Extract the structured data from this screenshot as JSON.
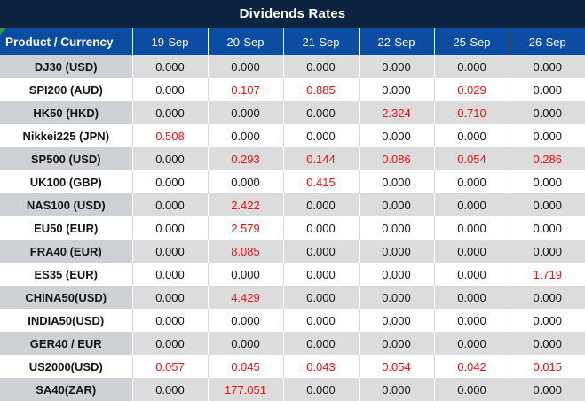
{
  "title": "Dividends Rates",
  "colors": {
    "title_bar_bg": "#0C2340",
    "header_bg": "#0B4DA3",
    "header_text": "#FFFFFF",
    "row_gray": "#DCDCDC",
    "label_gray": "#CDD1D5",
    "row_white": "#FFFFFF",
    "value_text": "#141414",
    "highlight_red": "#F20D0D",
    "corner_marker_green": "#2E9E3A"
  },
  "table": {
    "header": {
      "product_label": "Product / Currency",
      "dates": [
        "19-Sep",
        "20-Sep",
        "21-Sep",
        "22-Sep",
        "25-Sep",
        "26-Sep"
      ]
    },
    "rows": [
      {
        "label": "DJ30 (USD)",
        "values": [
          "0.000",
          "0.000",
          "0.000",
          "0.000",
          "0.000",
          "0.000"
        ]
      },
      {
        "label": "SPI200 (AUD)",
        "values": [
          "0.000",
          "0.107",
          "0.885",
          "0.000",
          "0.029",
          "0.000"
        ]
      },
      {
        "label": "HK50 (HKD)",
        "values": [
          "0.000",
          "0.000",
          "0.000",
          "2.324",
          "0.710",
          "0.000"
        ]
      },
      {
        "label": "Nikkei225 (JPN)",
        "values": [
          "0.508",
          "0.000",
          "0.000",
          "0.000",
          "0.000",
          "0.000"
        ]
      },
      {
        "label": "SP500 (USD)",
        "values": [
          "0.000",
          "0.293",
          "0.144",
          "0.086",
          "0.054",
          "0.286"
        ]
      },
      {
        "label": "UK100 (GBP)",
        "values": [
          "0.000",
          "0.000",
          "0.415",
          "0.000",
          "0.000",
          "0.000"
        ]
      },
      {
        "label": "NAS100 (USD)",
        "values": [
          "0.000",
          "2.422",
          "0.000",
          "0.000",
          "0.000",
          "0.000"
        ]
      },
      {
        "label": "EU50 (EUR)",
        "values": [
          "0.000",
          "2.579",
          "0.000",
          "0.000",
          "0.000",
          "0.000"
        ]
      },
      {
        "label": "FRA40 (EUR)",
        "values": [
          "0.000",
          "8.085",
          "0.000",
          "0.000",
          "0.000",
          "0.000"
        ]
      },
      {
        "label": "ES35 (EUR)",
        "values": [
          "0.000",
          "0.000",
          "0.000",
          "0.000",
          "0.000",
          "1.719"
        ]
      },
      {
        "label": "CHINA50(USD)",
        "values": [
          "0.000",
          "4.429",
          "0.000",
          "0.000",
          "0.000",
          "0.000"
        ]
      },
      {
        "label": "INDIA50(USD)",
        "values": [
          "0.000",
          "0.000",
          "0.000",
          "0.000",
          "0.000",
          "0.000"
        ]
      },
      {
        "label": "GER40 / EUR",
        "values": [
          "0.000",
          "0.000",
          "0.000",
          "0.000",
          "0.000",
          "0.000"
        ]
      },
      {
        "label": "US2000(USD)",
        "values": [
          "0.057",
          "0.045",
          "0.043",
          "0.054",
          "0.042",
          "0.015"
        ]
      },
      {
        "label": "SA40(ZAR)",
        "values": [
          "0.000",
          "177.051",
          "0.000",
          "0.000",
          "0.000",
          "0.000"
        ]
      }
    ],
    "zero_value": "0.000"
  },
  "chart_data": {
    "type": "table",
    "title": "Dividends Rates",
    "columns": [
      "Product / Currency",
      "19-Sep",
      "20-Sep",
      "21-Sep",
      "22-Sep",
      "25-Sep",
      "26-Sep"
    ],
    "rows": [
      [
        "DJ30 (USD)",
        0.0,
        0.0,
        0.0,
        0.0,
        0.0,
        0.0
      ],
      [
        "SPI200 (AUD)",
        0.0,
        0.107,
        0.885,
        0.0,
        0.029,
        0.0
      ],
      [
        "HK50 (HKD)",
        0.0,
        0.0,
        0.0,
        2.324,
        0.71,
        0.0
      ],
      [
        "Nikkei225 (JPN)",
        0.508,
        0.0,
        0.0,
        0.0,
        0.0,
        0.0
      ],
      [
        "SP500 (USD)",
        0.0,
        0.293,
        0.144,
        0.086,
        0.054,
        0.286
      ],
      [
        "UK100 (GBP)",
        0.0,
        0.0,
        0.415,
        0.0,
        0.0,
        0.0
      ],
      [
        "NAS100 (USD)",
        0.0,
        2.422,
        0.0,
        0.0,
        0.0,
        0.0
      ],
      [
        "EU50 (EUR)",
        0.0,
        2.579,
        0.0,
        0.0,
        0.0,
        0.0
      ],
      [
        "FRA40 (EUR)",
        0.0,
        8.085,
        0.0,
        0.0,
        0.0,
        0.0
      ],
      [
        "ES35 (EUR)",
        0.0,
        0.0,
        0.0,
        0.0,
        0.0,
        1.719
      ],
      [
        "CHINA50(USD)",
        0.0,
        4.429,
        0.0,
        0.0,
        0.0,
        0.0
      ],
      [
        "INDIA50(USD)",
        0.0,
        0.0,
        0.0,
        0.0,
        0.0,
        0.0
      ],
      [
        "GER40 / EUR",
        0.0,
        0.0,
        0.0,
        0.0,
        0.0,
        0.0
      ],
      [
        "US2000(USD)",
        0.057,
        0.045,
        0.043,
        0.054,
        0.042,
        0.015
      ],
      [
        "SA40(ZAR)",
        0.0,
        177.051,
        0.0,
        0.0,
        0.0,
        0.0
      ]
    ],
    "notes": "Non-zero rates rendered in red; zero rates in black. Rows alternate gray/white."
  }
}
